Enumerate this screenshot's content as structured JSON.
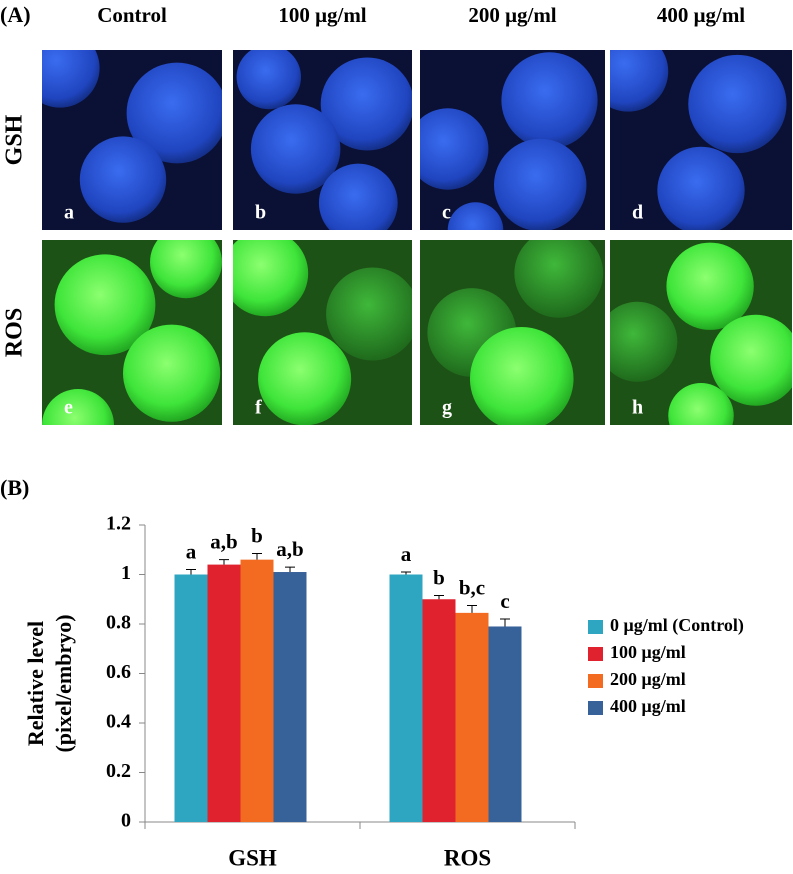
{
  "panel_a": {
    "label": "(A)",
    "columns": [
      "Control",
      "100 μg/ml",
      "200 μg/ml",
      "400 μg/ml"
    ],
    "rows": [
      {
        "label": "GSH",
        "letters": [
          "a",
          "b",
          "c",
          "d"
        ]
      },
      {
        "label": "ROS",
        "letters": [
          "e",
          "f",
          "g",
          "h"
        ]
      }
    ]
  },
  "chart_data": {
    "type": "bar",
    "panel_label": "(B)",
    "ylabel": [
      "Relative level",
      "(pixel/embryo)"
    ],
    "categories": [
      "GSH",
      "ROS"
    ],
    "series": [
      {
        "name": "0 μg/ml (Control)",
        "color": "#2ea6c1",
        "values": [
          1.0,
          1.0
        ],
        "errors": [
          0.02,
          0.01
        ],
        "letters": [
          "a",
          "a"
        ]
      },
      {
        "name": "100 μg/ml",
        "color": "#e0212e",
        "values": [
          1.04,
          0.9
        ],
        "errors": [
          0.02,
          0.015
        ],
        "letters": [
          "a,b",
          "b"
        ]
      },
      {
        "name": "200 μg/ml",
        "color": "#f36b21",
        "values": [
          1.06,
          0.845
        ],
        "errors": [
          0.025,
          0.03
        ],
        "letters": [
          "b",
          "b,c"
        ]
      },
      {
        "name": "400 μg/ml",
        "color": "#376199",
        "values": [
          1.01,
          0.79
        ],
        "errors": [
          0.02,
          0.03
        ],
        "letters": [
          "a,b",
          "c"
        ]
      }
    ],
    "ylim": [
      0,
      1.2
    ],
    "yticks": [
      0,
      0.2,
      0.4,
      0.6,
      0.8,
      1,
      1.2
    ],
    "grid": false,
    "legend": "right"
  }
}
